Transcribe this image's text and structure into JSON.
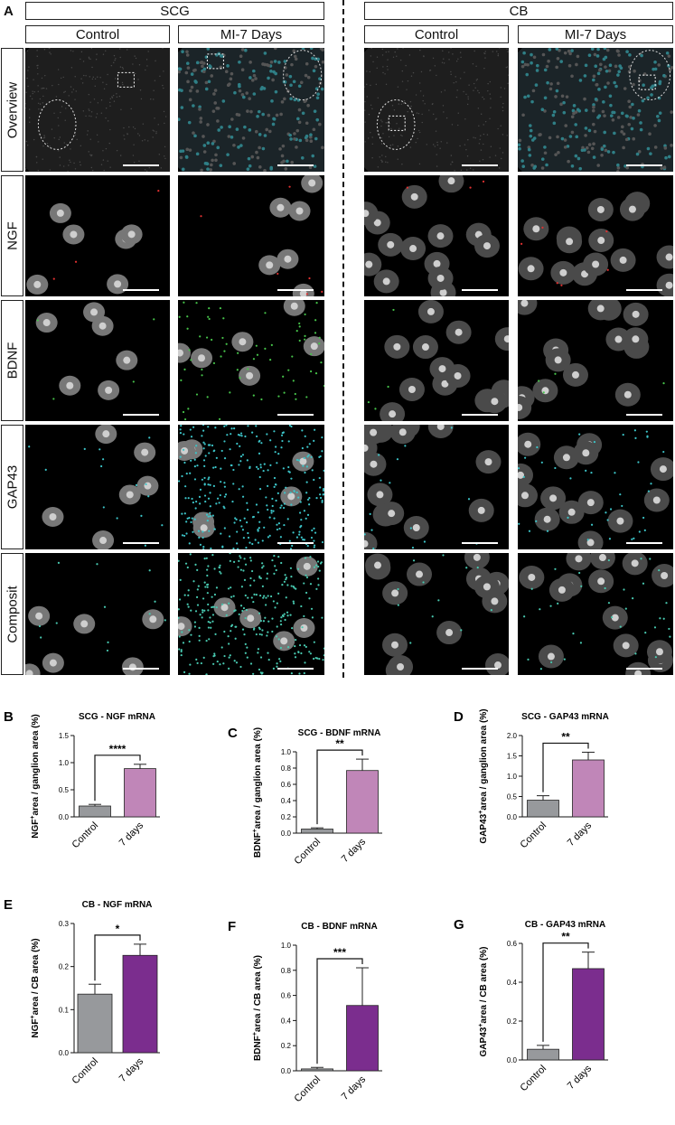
{
  "panel_a": {
    "letter": "A",
    "groups": [
      "SCG",
      "CB"
    ],
    "columns": [
      "Control",
      "MI-7 Days",
      "Control",
      "MI-7 Days"
    ],
    "rows": [
      "Overview",
      "NGF",
      "BDNF",
      "GAP43",
      "Composit"
    ]
  },
  "chart_data": [
    {
      "letter": "B",
      "type": "bar",
      "title": "SCG - NGF mRNA",
      "ylabel": "NGF+area / ganglion area (%)",
      "ylabel_main": "NGF",
      "ylabel_sup": "+",
      "ylabel_rest": "area / ganglion area (%)",
      "categories": [
        "Control",
        "7 days"
      ],
      "values": [
        0.2,
        0.89
      ],
      "errors": [
        0.03,
        0.08
      ],
      "colors": [
        "#97999c",
        "#c086b8"
      ],
      "ylim": [
        0,
        1.5
      ],
      "yticks": [
        "0.0",
        "0.5",
        "1.0",
        "1.5"
      ],
      "significance": "****"
    },
    {
      "letter": "C",
      "type": "bar",
      "title": "SCG - BDNF mRNA",
      "ylabel": "BDNF+area / ganglion area (%)",
      "ylabel_main": "BDNF",
      "ylabel_sup": "+",
      "ylabel_rest": "area / ganglion area (%)",
      "categories": [
        "Control",
        "7 days"
      ],
      "values": [
        0.05,
        0.77
      ],
      "errors": [
        0.015,
        0.14
      ],
      "colors": [
        "#97999c",
        "#c086b8"
      ],
      "ylim": [
        0,
        1.0
      ],
      "yticks": [
        "0.0",
        "0.2",
        "0.4",
        "0.6",
        "0.8",
        "1.0"
      ],
      "significance": "**"
    },
    {
      "letter": "D",
      "type": "bar",
      "title": "SCG - GAP43 mRNA",
      "ylabel": "GAP43+area / ganglion area (%)",
      "ylabel_main": "GAP43",
      "ylabel_sup": "+",
      "ylabel_rest": "area / ganglion area (%)",
      "categories": [
        "Control",
        "7 days"
      ],
      "values": [
        0.41,
        1.4
      ],
      "errors": [
        0.11,
        0.19
      ],
      "colors": [
        "#97999c",
        "#c086b8"
      ],
      "ylim": [
        0,
        2.0
      ],
      "yticks": [
        "0.0",
        "0.5",
        "1.0",
        "1.5",
        "2.0"
      ],
      "significance": "**"
    },
    {
      "letter": "E",
      "type": "bar",
      "title": "CB - NGF mRNA",
      "ylabel": "NGF+area / CB area (%)",
      "ylabel_main": "NGF",
      "ylabel_sup": "+",
      "ylabel_rest": "area / CB area (%)",
      "categories": [
        "Control",
        "7 days"
      ],
      "values": [
        0.136,
        0.226
      ],
      "errors": [
        0.023,
        0.026
      ],
      "colors": [
        "#97999c",
        "#7b2d8e"
      ],
      "ylim": [
        0,
        0.3
      ],
      "yticks": [
        "0.0",
        "0.1",
        "0.2",
        "0.3"
      ],
      "significance": "*"
    },
    {
      "letter": "F",
      "type": "bar",
      "title": "CB - BDNF mRNA",
      "ylabel": "BDNF+area / CB area (%)",
      "ylabel_main": "BDNF",
      "ylabel_sup": "+",
      "ylabel_rest": "area / CB area (%)",
      "categories": [
        "Control",
        "7 days"
      ],
      "values": [
        0.015,
        0.52
      ],
      "errors": [
        0.012,
        0.3
      ],
      "colors": [
        "#97999c",
        "#7b2d8e"
      ],
      "ylim": [
        0,
        1.0
      ],
      "yticks": [
        "0.0",
        "0.2",
        "0.4",
        "0.6",
        "0.8",
        "1.0"
      ],
      "significance": "***"
    },
    {
      "letter": "G",
      "type": "bar",
      "title": "CB - GAP43 mRNA",
      "ylabel": "GAP43+area / CB area (%)",
      "ylabel_main": "GAP43",
      "ylabel_sup": "+",
      "ylabel_rest": "area / CB area (%)",
      "categories": [
        "Control",
        "7 days"
      ],
      "values": [
        0.055,
        0.47
      ],
      "errors": [
        0.02,
        0.085
      ],
      "colors": [
        "#97999c",
        "#7b2d8e"
      ],
      "ylim": [
        0,
        0.6
      ],
      "yticks": [
        "0.0",
        "0.2",
        "0.4",
        "0.6"
      ],
      "significance": "**"
    }
  ]
}
